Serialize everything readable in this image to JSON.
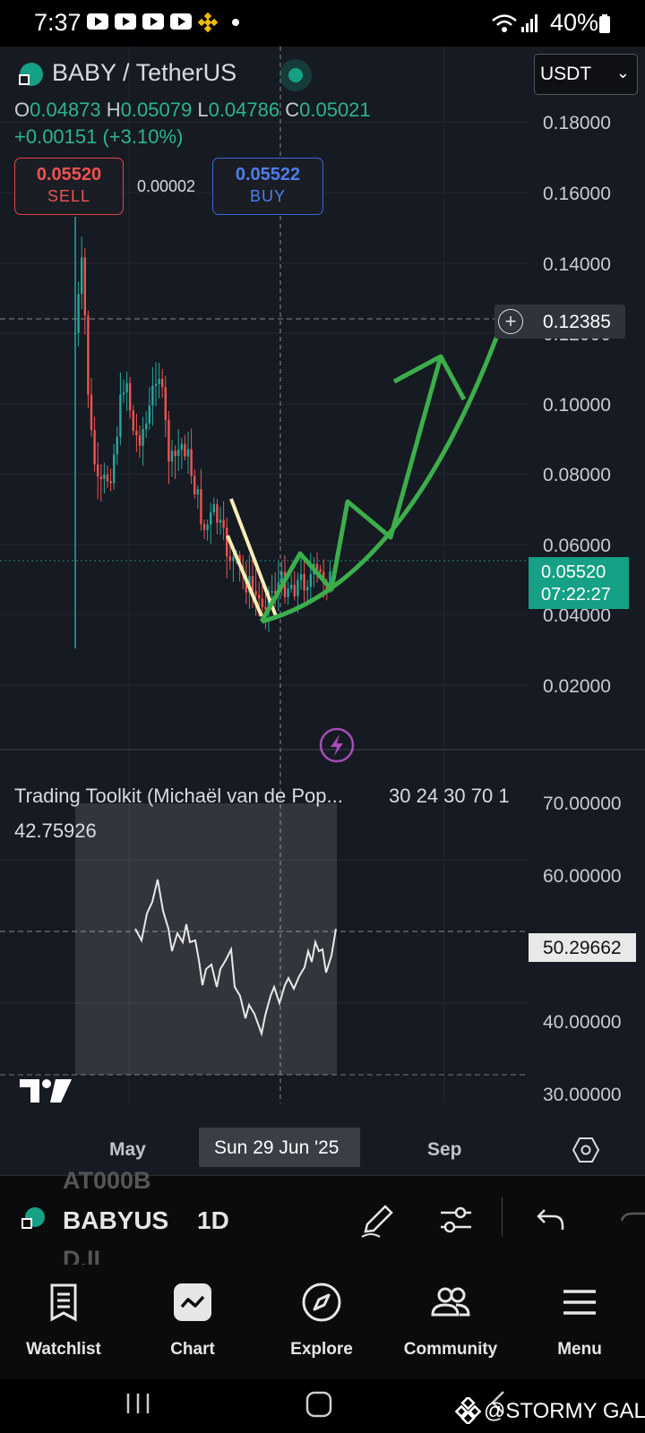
{
  "status": {
    "time": "7:37",
    "battery": "40%"
  },
  "header": {
    "pair": "BABY / TetherUS",
    "currency": "USDT"
  },
  "ohlc": {
    "o_label": "O",
    "o": "0.04873",
    "h_label": "H",
    "h": "0.05079",
    "l_label": "L",
    "l": "0.04786",
    "c_label": "C",
    "c": "0.05021",
    "change": "+0.00151 (+3.10%)"
  },
  "trade": {
    "sell_price": "0.05520",
    "sell_label": "SELL",
    "spread": "0.00002",
    "buy_price": "0.05522",
    "buy_label": "BUY"
  },
  "price_axis": [
    "0.18000",
    "0.16000",
    "0.14000",
    "0.12000",
    "0.10000",
    "0.08000",
    "0.06000",
    "0.04000",
    "0.02000"
  ],
  "crosshair_price": "0.12385",
  "last_price": "0.05520",
  "countdown": "07:22:27",
  "indicator": {
    "name": "Trading Toolkit (Michaël van de Pop...",
    "params": "30 24 30 70 1",
    "value": "42.75926",
    "axis": [
      "70.00000",
      "60.00000",
      "40.00000",
      "30.00000"
    ],
    "crosshair_value": "50.29662"
  },
  "time_axis": {
    "left": "May",
    "selected": "Sun 29 Jun '25",
    "right": "Sep"
  },
  "toolbar": {
    "symbol": "BABYUS",
    "faded_above": "AT000B",
    "faded_below": "D.II",
    "interval": "1D"
  },
  "nav": [
    {
      "label": "Watchlist",
      "icon": "watchlist-icon"
    },
    {
      "label": "Chart",
      "icon": "chart-icon"
    },
    {
      "label": "Explore",
      "icon": "compass-icon"
    },
    {
      "label": "Community",
      "icon": "community-icon"
    },
    {
      "label": "Menu",
      "icon": "menu-icon"
    }
  ],
  "watermark": "@STORMY GAL",
  "colors": {
    "up": "#26a69a",
    "down": "#ef5350",
    "accent": "#16a085",
    "drawing_green": "#3cae4b",
    "drawing_yellow": "#f7efb5"
  }
}
